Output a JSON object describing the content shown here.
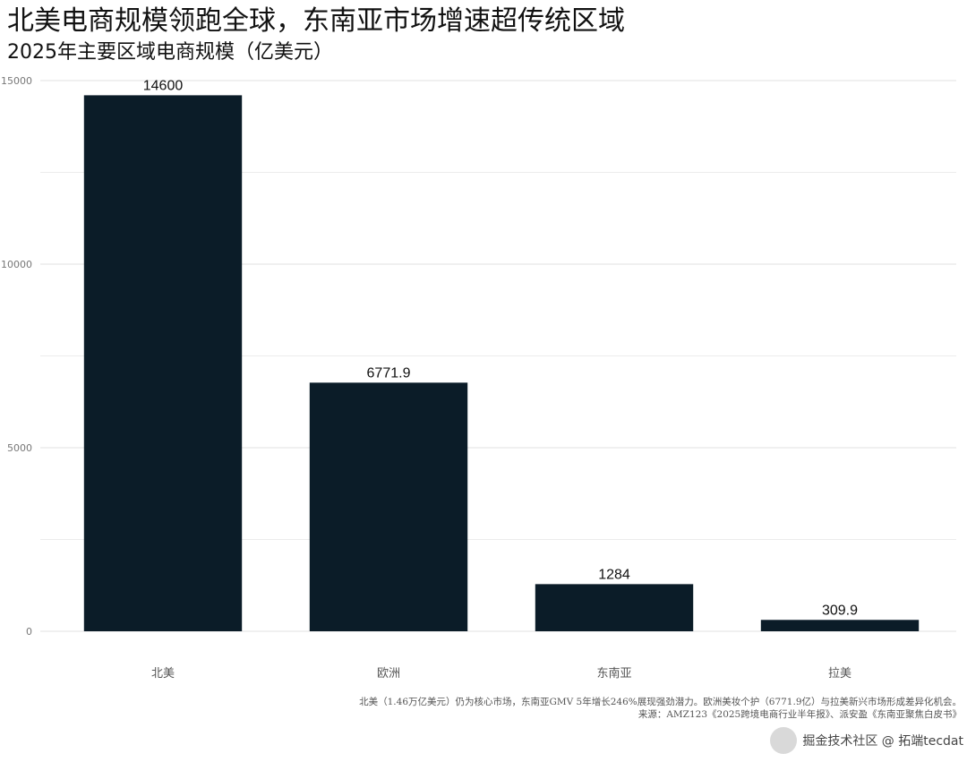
{
  "header": {
    "title": "北美电商规模领跑全球，东南亚市场增速超传统区域",
    "subtitle": "2025年主要区域电商规模（亿美元）"
  },
  "footer": {
    "note": "北美（1.46万亿美元）仍为核心市场，东南亚GMV 5年增长246%展现强劲潜力。欧洲美妆个护（6771.9亿）与拉美新兴市场形成差异化机会。",
    "source": "来源：AMZ123《2025跨境电商行业半年报》、派安盈《东南亚聚焦白皮书》"
  },
  "watermark": {
    "text": "掘金技术社区 @ 拓端tecdat",
    "brand": "拓端"
  },
  "chart_data": {
    "type": "bar",
    "categories": [
      "北美",
      "欧洲",
      "东南亚",
      "拉美"
    ],
    "values": [
      14600,
      6771.9,
      1284,
      309.9
    ],
    "value_labels": [
      "14600",
      "6771.9",
      "1284",
      "309.9"
    ],
    "title": "北美电商规模领跑全球，东南亚市场增速超传统区域",
    "subtitle": "2025年主要区域电商规模（亿美元）",
    "xlabel": "",
    "ylabel": "",
    "ylim": [
      0,
      15000
    ],
    "yticks": [
      0,
      5000,
      10000,
      15000
    ],
    "grid": true,
    "bar_color": "#0b1c28",
    "grid_color": "#e6e6e6"
  }
}
